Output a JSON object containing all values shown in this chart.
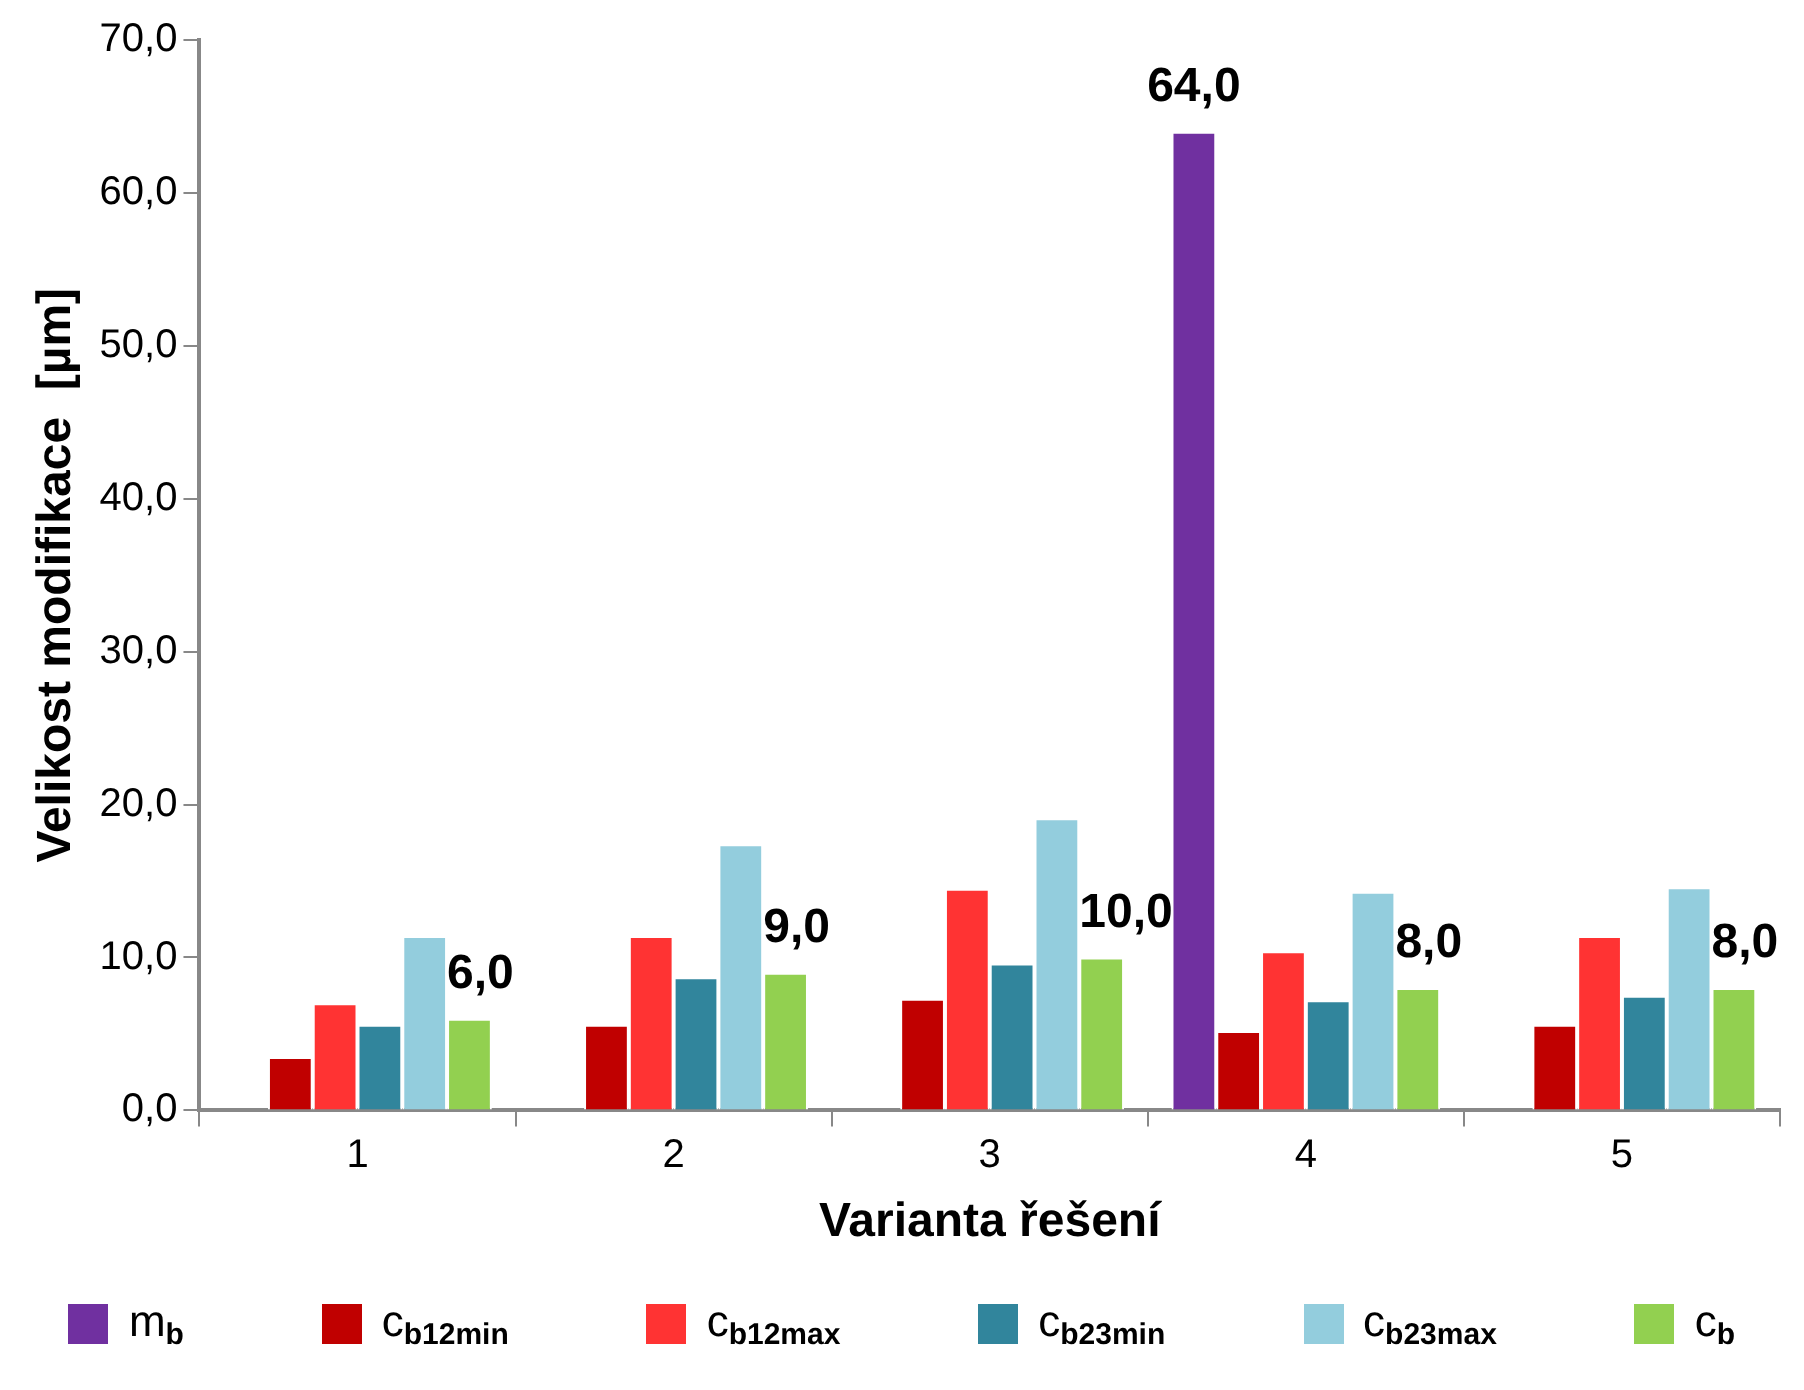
{
  "chart_data": {
    "type": "bar",
    "xlabel": "Varianta řešení",
    "ylabel": "Velikost modifikace  [µm]",
    "categories": [
      "1",
      "2",
      "3",
      "4",
      "5"
    ],
    "series": [
      {
        "name": "m$_{b}$",
        "color": "#7030a0",
        "values": [
          null,
          null,
          null,
          64.0,
          null
        ],
        "value_labels": [
          null,
          null,
          null,
          "64,0",
          null
        ]
      },
      {
        "name": "c$_{b12min}$",
        "color": "#c00000",
        "values": [
          3.5,
          5.6,
          7.3,
          5.2,
          5.6
        ]
      },
      {
        "name": "c$_{b12max}$",
        "color": "#ff3333",
        "values": [
          7.0,
          11.4,
          14.5,
          10.4,
          11.4
        ]
      },
      {
        "name": "c$_{b23min}$",
        "color": "#31859c",
        "values": [
          5.6,
          8.7,
          9.6,
          7.2,
          7.5
        ]
      },
      {
        "name": "c$_{b23max}$",
        "color": "#93cddd",
        "values": [
          11.4,
          17.4,
          19.1,
          14.3,
          14.6
        ]
      },
      {
        "name": "c$_{b}$",
        "color": "#92d050",
        "values": [
          6.0,
          9.0,
          10.0,
          8.0,
          8.0
        ],
        "value_labels": [
          "6,0",
          "9,0",
          "10,0",
          "8,0",
          "8,0"
        ]
      }
    ],
    "ylim": [
      0,
      70
    ],
    "yticks": [
      {
        "value": 0,
        "label": "0,0"
      },
      {
        "value": 10,
        "label": "10,0"
      },
      {
        "value": 20,
        "label": "20,0"
      },
      {
        "value": 30,
        "label": "30,0"
      },
      {
        "value": 40,
        "label": "40,0"
      },
      {
        "value": 50,
        "label": "50,0"
      },
      {
        "value": 60,
        "label": "60,0"
      },
      {
        "value": 70,
        "label": "70,0"
      }
    ],
    "grid": false,
    "legend": "bottom"
  }
}
